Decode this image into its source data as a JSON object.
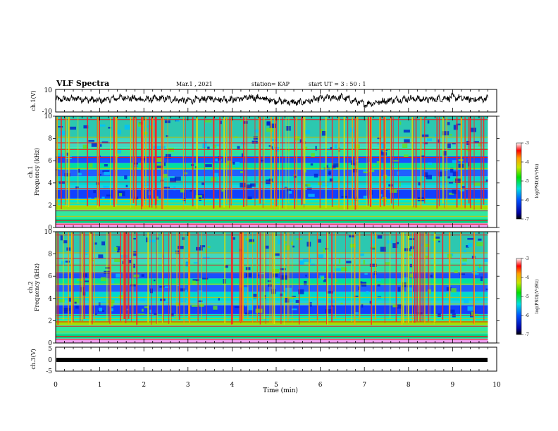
{
  "header": {
    "title": "VLF Spectra",
    "date": "Mar.1 , 2021",
    "station": "station= KAP",
    "start": "start  UT  =   3 : 50 : 1"
  },
  "colorbar": {
    "label": "log(PSD)(V²/Hz)",
    "ticks": [
      "-3",
      "-4",
      "-5",
      "-6",
      "-7"
    ]
  },
  "chart_data": [
    {
      "type": "line",
      "name": "ch1-waveform",
      "ylabel": "ch.1(V)",
      "ylim": [
        -10,
        10
      ],
      "yticks": [
        "10",
        "-10"
      ],
      "xlim": [
        0,
        10
      ],
      "line_color": "#000000",
      "note_trend_x": [
        0,
        0.5,
        1.0,
        1.5,
        2.0,
        2.5,
        3.0,
        3.5,
        4.0,
        4.5,
        5.0,
        5.5,
        6.0,
        6.5,
        7.0,
        7.5,
        8.0,
        8.5,
        9.0,
        9.5,
        9.8
      ],
      "note_trend_y": [
        1,
        2,
        0,
        3,
        1,
        2,
        0,
        2,
        1,
        3,
        0,
        -2,
        2,
        3,
        -3,
        0,
        2,
        1,
        3,
        1,
        2
      ]
    },
    {
      "type": "heatmap",
      "name": "ch1-spectrogram",
      "ylabel": "ch.1\nFrequency (kHz)",
      "ylim": [
        0,
        10
      ],
      "yticks": [
        "0",
        "2",
        "4",
        "6",
        "8",
        "10"
      ],
      "xlim": [
        0,
        10
      ],
      "zlim": [
        -7,
        -3
      ]
    },
    {
      "type": "heatmap",
      "name": "ch2-spectrogram",
      "ylabel": "ch.2\nFrequency (kHz)",
      "ylim": [
        0,
        10
      ],
      "yticks": [
        "0",
        "2",
        "4",
        "6",
        "8",
        "10"
      ],
      "xlim": [
        0,
        10
      ],
      "zlim": [
        -7,
        -3
      ]
    },
    {
      "type": "line",
      "name": "ch3-waveform",
      "ylabel": "ch.3(V)",
      "ylim": [
        -5,
        5
      ],
      "yticks": [
        "5",
        "0",
        "-5"
      ],
      "xlim": [
        0,
        10
      ],
      "level": -1
    }
  ],
  "xaxis": {
    "label": "Time  (min)",
    "ticks": [
      "0",
      "1",
      "2",
      "3",
      "4",
      "5",
      "6",
      "7",
      "8",
      "9",
      "10"
    ]
  }
}
